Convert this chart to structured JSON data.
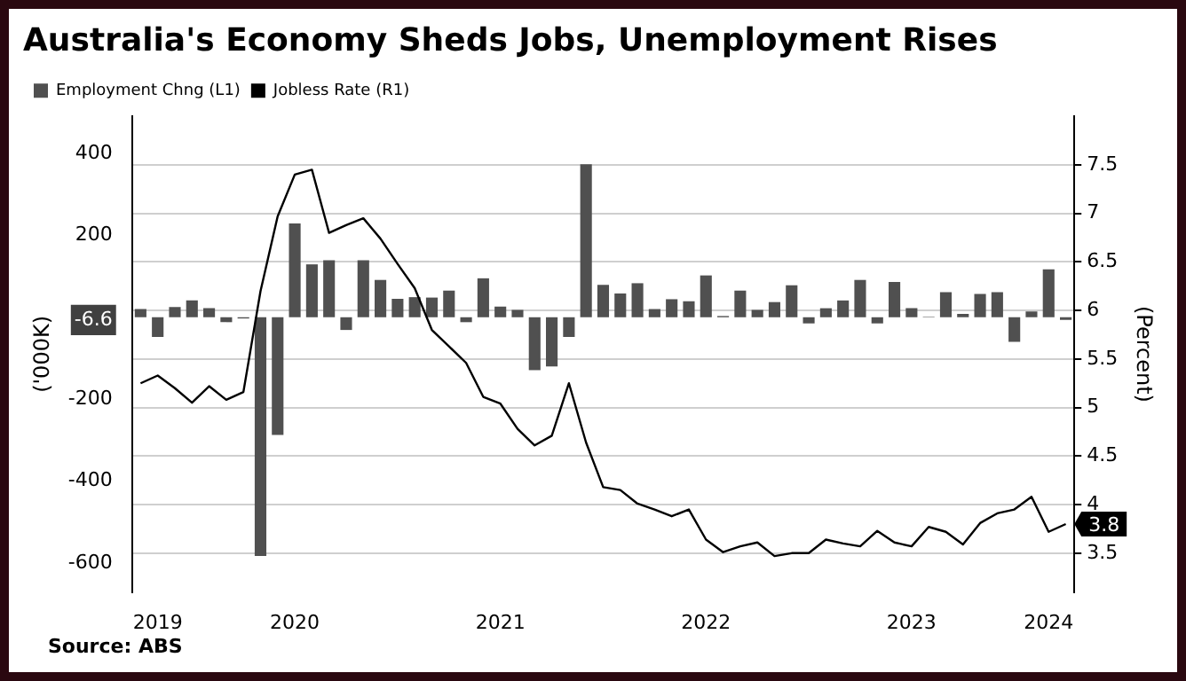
{
  "chart_data": {
    "type": "bar",
    "title": "Australia's Economy Sheds Jobs, Unemployment Rises",
    "ylabel": "('000K)",
    "y2label": "(Percent)",
    "annotations": [
      "Source: ABS"
    ],
    "categories": [
      null,
      "2019",
      null,
      null,
      null,
      null,
      null,
      null,
      null,
      "2020",
      null,
      null,
      null,
      null,
      null,
      null,
      null,
      null,
      null,
      null,
      null,
      "2021",
      null,
      null,
      null,
      null,
      null,
      null,
      null,
      null,
      null,
      null,
      null,
      "2022",
      null,
      null,
      null,
      null,
      null,
      null,
      null,
      null,
      null,
      null,
      null,
      "2023",
      null,
      null,
      null,
      null,
      null,
      null,
      null,
      "2024",
      null
    ],
    "series": [
      {
        "name": "Employment Chng (L1)",
        "color": "#505050",
        "values": [
          20,
          -48,
          25,
          41,
          22,
          -12,
          -3,
          -582,
          -287,
          229,
          129,
          139,
          -31,
          139,
          91,
          45,
          49,
          48,
          65,
          -12,
          95,
          26,
          18,
          -129,
          -120,
          -48,
          373,
          79,
          58,
          83,
          20,
          44,
          39,
          102,
          3,
          65,
          18,
          37,
          78,
          -15,
          22,
          41,
          91,
          -15,
          86,
          22,
          1,
          61,
          8,
          57,
          61,
          -60,
          14,
          117,
          -6.6
        ]
      },
      {
        "name": "Jobless Rate (R1)",
        "type": "line",
        "axis": "y2",
        "color": "#000000",
        "values": [
          5.25,
          5.33,
          5.2,
          5.05,
          5.22,
          5.08,
          5.16,
          6.2,
          6.97,
          7.4,
          7.45,
          6.8,
          6.88,
          6.95,
          6.74,
          6.48,
          6.23,
          5.8,
          5.63,
          5.46,
          5.11,
          5.04,
          4.78,
          4.61,
          4.71,
          5.25,
          4.64,
          4.18,
          4.15,
          4.01,
          3.95,
          3.88,
          3.95,
          3.64,
          3.51,
          3.57,
          3.61,
          3.47,
          3.5,
          3.5,
          3.64,
          3.6,
          3.57,
          3.73,
          3.61,
          3.57,
          3.77,
          3.72,
          3.59,
          3.81,
          3.91,
          3.95,
          4.08,
          3.72,
          3.8
        ],
        "value_labels": [
          null,
          null,
          null,
          null,
          null,
          null,
          null,
          null,
          null,
          null,
          null,
          null,
          null,
          null,
          null,
          null,
          null,
          null,
          null,
          null,
          null,
          null,
          null,
          null,
          null,
          null,
          null,
          null,
          null,
          null,
          null,
          null,
          null,
          null,
          null,
          null,
          null,
          null,
          null,
          null,
          null,
          null,
          null,
          null,
          null,
          null,
          null,
          null,
          null,
          null,
          null,
          null,
          null,
          null,
          "3.8"
        ]
      }
    ],
    "ylim": [
      -670,
      490
    ],
    "yticks": [
      -600,
      -400,
      -200,
      -6.6,
      200,
      400
    ],
    "y2lim": [
      3.1,
      8.0
    ],
    "y2ticks": [
      3.5,
      4.0,
      4.5,
      5.0,
      5.5,
      6.0,
      6.5,
      7.0,
      7.5
    ],
    "grid": "y",
    "legend": "top left",
    "marker": "none",
    "line_style": "solid"
  }
}
